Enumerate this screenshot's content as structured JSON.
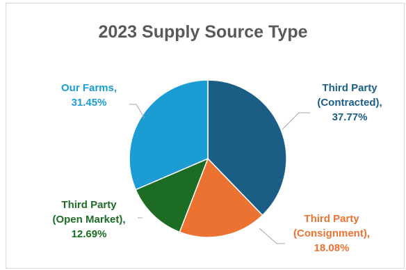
{
  "chart_data": {
    "type": "pie",
    "title": "2023 Supply Source Type",
    "slices": [
      {
        "name": "Third Party (Contracted)",
        "value": 37.77,
        "label_lines": [
          "Third Party",
          "(Contracted),",
          "37.77%"
        ],
        "color": "#1a5e86"
      },
      {
        "name": "Third Party (Consignment)",
        "value": 18.08,
        "label_lines": [
          "Third Party",
          "(Consignment),",
          "18.08%"
        ],
        "color": "#ec7232"
      },
      {
        "name": "Third Party (Open Market)",
        "value": 12.69,
        "label_lines": [
          "Third Party",
          "(Open Market),",
          "12.69%"
        ],
        "color": "#1d6c24"
      },
      {
        "name": "Our Farms",
        "value": 31.45,
        "label_lines": [
          "Our Farms,",
          "31.45%"
        ],
        "color": "#1b9dd4"
      }
    ],
    "legend": "none",
    "data_labels": "outside-with-leader-lines"
  }
}
